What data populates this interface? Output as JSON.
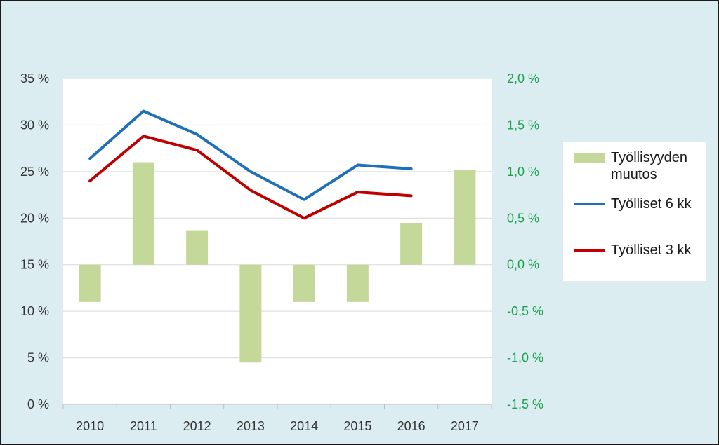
{
  "chart_data": {
    "type": "bar+line",
    "categories": [
      "2010",
      "2011",
      "2012",
      "2013",
      "2014",
      "2015",
      "2016",
      "2017"
    ],
    "bar_series": {
      "name": "Työllisyyden muutos",
      "axis": "right",
      "values": [
        -0.4,
        1.1,
        0.37,
        -1.05,
        -0.4,
        -0.4,
        0.45,
        1.02
      ],
      "color": "#c4d89a"
    },
    "line_series": [
      {
        "name": "Työlliset 6 kk",
        "axis": "left",
        "values": [
          26.4,
          31.5,
          29.0,
          25.0,
          22.0,
          25.7,
          25.3,
          null
        ],
        "color": "#1f70b8"
      },
      {
        "name": "Työlliset 3 kk",
        "axis": "left",
        "values": [
          24.0,
          28.8,
          27.3,
          23.0,
          20.0,
          22.8,
          22.4,
          null
        ],
        "color": "#c00000"
      }
    ],
    "y_left": {
      "min": 0,
      "max": 35,
      "step": 5,
      "tick_labels": [
        "0 %",
        "5 %",
        "10 %",
        "15 %",
        "20 %",
        "25 %",
        "30 %",
        "35 %"
      ]
    },
    "y_right": {
      "min": -1.5,
      "max": 2.0,
      "step": 0.5,
      "tick_labels": [
        "-1,5 %",
        "-1,0 %",
        "-0,5 %",
        "0,0 %",
        "0,5 %",
        "1,0 %",
        "1,5 %",
        "2,0 %"
      ],
      "color": "#1aa34a"
    },
    "grid": true,
    "legend_position": "right",
    "colors": {
      "background": "#dcedf2",
      "plot_background": "#ffffff",
      "grid": "#d9d9d9"
    }
  },
  "legend": {
    "items": [
      {
        "label": "Työllisyyden muutos",
        "kind": "bar",
        "color": "#c4d89a"
      },
      {
        "label": "Työlliset 6 kk",
        "kind": "line",
        "color": "#1f70b8"
      },
      {
        "label": "Työlliset 3 kk",
        "kind": "line",
        "color": "#c00000"
      }
    ]
  }
}
